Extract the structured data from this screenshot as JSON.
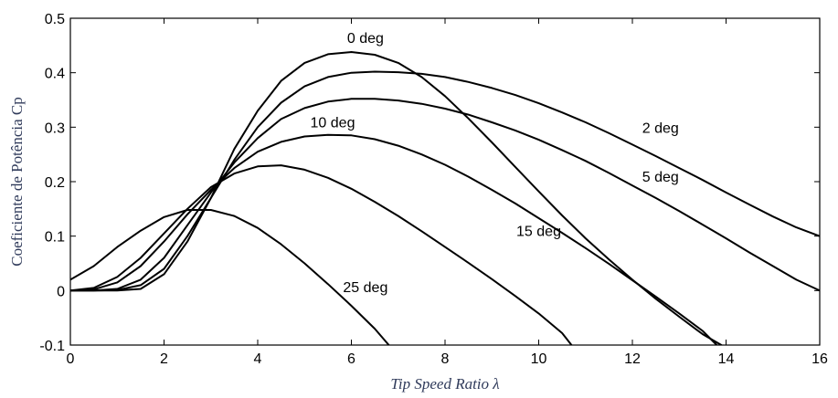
{
  "chart_data": {
    "type": "line",
    "title": "",
    "xlabel": "Tip Speed Ratio λ",
    "ylabel": "Coeficiente de Potência Cp",
    "xlim": [
      0,
      16
    ],
    "ylim": [
      -0.1,
      0.5
    ],
    "x_ticks": [
      "0",
      "2",
      "4",
      "6",
      "8",
      "10",
      "12",
      "14",
      "16"
    ],
    "y_ticks": [
      "-0.1",
      "0",
      "0.1",
      "0.2",
      "0.3",
      "0.4",
      "0.5"
    ],
    "grid": false,
    "legend": "none (curves labeled directly)",
    "line_color": "#000000",
    "series": [
      {
        "name": "0 deg",
        "x": [
          0,
          0.5,
          1.0,
          1.5,
          2.0,
          2.5,
          3.0,
          3.5,
          4.0,
          4.5,
          5.0,
          5.5,
          6.0,
          6.5,
          7.0,
          7.5,
          8.0,
          8.5,
          9.0,
          9.5,
          10.0,
          10.5,
          11.0,
          11.5,
          12.0,
          12.5,
          13.0,
          13.5,
          13.9
        ],
        "y": [
          0.0,
          0.0,
          0.0,
          0.003,
          0.03,
          0.09,
          0.17,
          0.26,
          0.33,
          0.385,
          0.418,
          0.434,
          0.438,
          0.433,
          0.418,
          0.392,
          0.357,
          0.316,
          0.272,
          0.227,
          0.182,
          0.138,
          0.096,
          0.057,
          0.02,
          -0.015,
          -0.048,
          -0.08,
          -0.1
        ]
      },
      {
        "name": "2 deg",
        "x": [
          0,
          0.5,
          1.0,
          1.5,
          2.0,
          2.5,
          3.0,
          3.5,
          4.0,
          4.5,
          5.0,
          5.5,
          6.0,
          6.5,
          7.0,
          7.5,
          8.0,
          8.5,
          9.0,
          9.5,
          10.0,
          10.5,
          11.0,
          11.5,
          12.0,
          12.5,
          13.0,
          13.5,
          14.0,
          14.5,
          15.0,
          15.5,
          16.0
        ],
        "y": [
          0.0,
          0.0,
          0.001,
          0.01,
          0.04,
          0.1,
          0.17,
          0.24,
          0.3,
          0.345,
          0.375,
          0.392,
          0.4,
          0.402,
          0.401,
          0.398,
          0.392,
          0.383,
          0.372,
          0.359,
          0.344,
          0.327,
          0.309,
          0.289,
          0.268,
          0.247,
          0.225,
          0.203,
          0.18,
          0.158,
          0.136,
          0.116,
          0.1
        ]
      },
      {
        "name": "5 deg",
        "x": [
          0,
          0.5,
          1.0,
          1.5,
          2.0,
          2.5,
          3.0,
          3.5,
          4.0,
          4.5,
          5.0,
          5.5,
          6.0,
          6.5,
          7.0,
          7.5,
          8.0,
          8.5,
          9.0,
          9.5,
          10.0,
          10.5,
          11.0,
          11.5,
          12.0,
          12.5,
          13.0,
          13.5,
          14.0,
          14.5,
          15.0,
          15.5,
          16.0
        ],
        "y": [
          0.0,
          0.0,
          0.003,
          0.02,
          0.06,
          0.12,
          0.18,
          0.235,
          0.28,
          0.315,
          0.335,
          0.347,
          0.352,
          0.352,
          0.349,
          0.343,
          0.334,
          0.323,
          0.309,
          0.294,
          0.277,
          0.258,
          0.238,
          0.216,
          0.193,
          0.17,
          0.146,
          0.121,
          0.096,
          0.07,
          0.045,
          0.02,
          0.0
        ]
      },
      {
        "name": "10 deg",
        "x": [
          0,
          0.5,
          1.0,
          1.5,
          2.0,
          2.5,
          3.0,
          3.5,
          4.0,
          4.5,
          5.0,
          5.5,
          6.0,
          6.5,
          7.0,
          7.5,
          8.0,
          8.5,
          9.0,
          9.5,
          10.0,
          10.5,
          11.0,
          11.5,
          12.0,
          12.5,
          13.0,
          13.5,
          13.8
        ],
        "y": [
          0.0,
          0.002,
          0.015,
          0.045,
          0.09,
          0.14,
          0.185,
          0.225,
          0.255,
          0.273,
          0.283,
          0.286,
          0.285,
          0.278,
          0.266,
          0.25,
          0.231,
          0.209,
          0.185,
          0.16,
          0.133,
          0.106,
          0.078,
          0.049,
          0.019,
          -0.011,
          -0.042,
          -0.074,
          -0.1
        ]
      },
      {
        "name": "15 deg",
        "x": [
          0,
          0.5,
          1.0,
          1.5,
          2.0,
          2.5,
          3.0,
          3.5,
          4.0,
          4.5,
          5.0,
          5.5,
          6.0,
          6.5,
          7.0,
          7.5,
          8.0,
          8.5,
          9.0,
          9.5,
          10.0,
          10.5,
          10.7
        ],
        "y": [
          0.0,
          0.005,
          0.025,
          0.06,
          0.105,
          0.15,
          0.19,
          0.215,
          0.228,
          0.23,
          0.222,
          0.207,
          0.187,
          0.163,
          0.137,
          0.109,
          0.08,
          0.051,
          0.021,
          -0.01,
          -0.042,
          -0.078,
          -0.1
        ]
      },
      {
        "name": "25 deg",
        "x": [
          0,
          0.5,
          1.0,
          1.5,
          2.0,
          2.5,
          3.0,
          3.5,
          4.0,
          4.5,
          5.0,
          5.5,
          6.0,
          6.5,
          6.8
        ],
        "y": [
          0.02,
          0.045,
          0.08,
          0.11,
          0.135,
          0.148,
          0.148,
          0.137,
          0.115,
          0.085,
          0.05,
          0.012,
          -0.028,
          -0.07,
          -0.1
        ]
      }
    ],
    "annotations": [
      {
        "text": "0 deg",
        "x": 6.3,
        "y": 0.455
      },
      {
        "text": "2 deg",
        "x": 12.6,
        "y": 0.29
      },
      {
        "text": "5 deg",
        "x": 12.6,
        "y": 0.2
      },
      {
        "text": "10 deg",
        "x": 5.6,
        "y": 0.3
      },
      {
        "text": "15 deg",
        "x": 10.0,
        "y": 0.1
      },
      {
        "text": "25 deg",
        "x": 6.3,
        "y": -0.003
      }
    ]
  }
}
